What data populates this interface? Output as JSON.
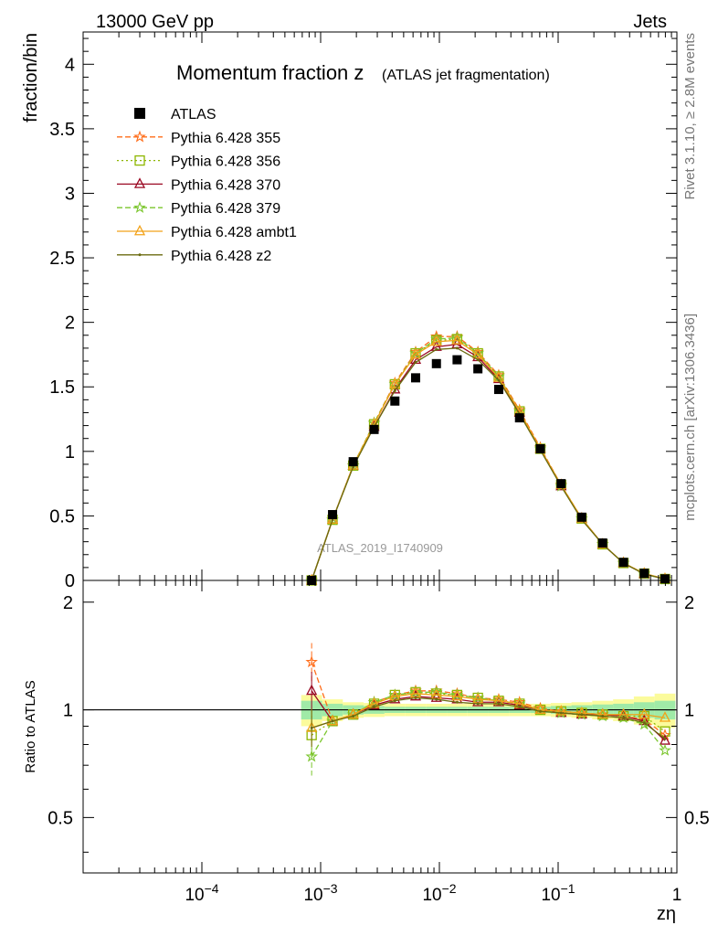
{
  "header": {
    "left": "13000 GeV pp",
    "right": "Jets"
  },
  "side_text": {
    "rivet": "Rivet 3.1.10, ≥ 2.8M events",
    "url": "mcplots.cern.ch [arXiv:1306.3436]"
  },
  "chart_data": {
    "type": "line",
    "title_main": "Momentum fraction z",
    "title_sub": "(ATLAS jet fragmentation)",
    "watermark": "ATLAS_2019_I1740909",
    "xlabel": "zη",
    "ylabel": "fraction/bin",
    "ratio_ylabel": "Ratio to ATLAS",
    "x_scale": "log",
    "xlim": [
      1e-05,
      1
    ],
    "ylim": [
      0,
      4.25
    ],
    "ratio_ylim": [
      0.35,
      2.3
    ],
    "x_ticks": [
      {
        "value": 0.0001,
        "base": "10",
        "exp": "−4"
      },
      {
        "value": 0.001,
        "base": "10",
        "exp": "−3"
      },
      {
        "value": 0.01,
        "base": "10",
        "exp": "−2"
      },
      {
        "value": 0.1,
        "base": "10",
        "exp": "−1"
      },
      {
        "value": 1,
        "base": "1",
        "exp": ""
      }
    ],
    "y_ticks": [
      {
        "value": 0,
        "label": "0"
      },
      {
        "value": 0.5,
        "label": "0.5"
      },
      {
        "value": 1,
        "label": "1"
      },
      {
        "value": 1.5,
        "label": "1.5"
      },
      {
        "value": 2,
        "label": "2"
      },
      {
        "value": 2.5,
        "label": "2.5"
      },
      {
        "value": 3,
        "label": "3"
      },
      {
        "value": 3.5,
        "label": "3.5"
      },
      {
        "value": 4,
        "label": "4"
      }
    ],
    "ratio_y_ticks": [
      {
        "value": 0.5,
        "label": "0.5"
      },
      {
        "value": 1,
        "label": "1"
      },
      {
        "value": 2,
        "label": "2"
      }
    ],
    "legend_position": "top-left",
    "x": [
      0.00084,
      0.00126,
      0.00188,
      0.00282,
      0.00422,
      0.00631,
      0.00944,
      0.0141,
      0.0211,
      0.0316,
      0.0473,
      0.0708,
      0.106,
      0.158,
      0.237,
      0.355,
      0.531,
      0.794
    ],
    "data": {
      "name": "ATLAS",
      "color": "#000000",
      "values": [
        0.0,
        0.51,
        0.92,
        1.17,
        1.39,
        1.57,
        1.68,
        1.71,
        1.64,
        1.48,
        1.26,
        1.02,
        0.75,
        0.49,
        0.29,
        0.14,
        0.055,
        0.012
      ],
      "band_rel_stat": [
        0.06,
        0.04,
        0.03,
        0.025,
        0.02,
        0.02,
        0.02,
        0.02,
        0.02,
        0.02,
        0.02,
        0.02,
        0.025,
        0.03,
        0.035,
        0.04,
        0.05,
        0.06
      ],
      "band_rel_total": [
        0.1,
        0.07,
        0.05,
        0.045,
        0.04,
        0.04,
        0.04,
        0.04,
        0.04,
        0.04,
        0.04,
        0.04,
        0.045,
        0.05,
        0.06,
        0.07,
        0.09,
        0.11
      ]
    },
    "series": [
      {
        "name": "Pythia 6.428 355",
        "color": "#ff6d1a",
        "dash": "dashed",
        "marker": "star",
        "values": [
          0.0,
          0.47,
          0.89,
          1.22,
          1.53,
          1.77,
          1.89,
          1.89,
          1.77,
          1.59,
          1.32,
          1.03,
          0.74,
          0.48,
          0.28,
          0.135,
          0.052,
          0.011
        ],
        "ratio": [
          1.36,
          0.93,
          0.97,
          1.05,
          1.1,
          1.13,
          1.13,
          1.11,
          1.08,
          1.07,
          1.05,
          1.01,
          0.99,
          0.98,
          0.97,
          0.96,
          0.94,
          0.85
        ]
      },
      {
        "name": "Pythia 6.428 356",
        "color": "#8db600",
        "dash": "dotted",
        "marker": "open-square",
        "values": [
          0.0,
          0.47,
          0.89,
          1.21,
          1.52,
          1.76,
          1.86,
          1.87,
          1.76,
          1.58,
          1.31,
          1.02,
          0.74,
          0.48,
          0.28,
          0.135,
          0.053,
          0.011
        ],
        "ratio": [
          0.85,
          0.93,
          0.97,
          1.04,
          1.1,
          1.12,
          1.11,
          1.1,
          1.08,
          1.06,
          1.04,
          1.0,
          0.99,
          0.98,
          0.97,
          0.96,
          0.96,
          0.87
        ]
      },
      {
        "name": "Pythia 6.428 370",
        "color": "#9b0a24",
        "dash": "solid",
        "marker": "open-triangle",
        "values": [
          0.0,
          0.47,
          0.89,
          1.19,
          1.48,
          1.71,
          1.81,
          1.83,
          1.73,
          1.56,
          1.3,
          1.02,
          0.73,
          0.48,
          0.28,
          0.135,
          0.05,
          0.01
        ],
        "ratio": [
          1.13,
          0.93,
          0.97,
          1.03,
          1.07,
          1.09,
          1.08,
          1.07,
          1.05,
          1.05,
          1.03,
          1.0,
          0.98,
          0.97,
          0.97,
          0.96,
          0.93,
          0.82
        ]
      },
      {
        "name": "Pythia 6.428 379",
        "color": "#7bc62d",
        "dash": "dashed",
        "marker": "star",
        "values": [
          0.0,
          0.47,
          0.89,
          1.22,
          1.52,
          1.76,
          1.87,
          1.88,
          1.76,
          1.58,
          1.31,
          1.02,
          0.73,
          0.48,
          0.28,
          0.135,
          0.05,
          0.009
        ],
        "ratio": [
          0.74,
          0.93,
          0.97,
          1.05,
          1.1,
          1.12,
          1.12,
          1.1,
          1.08,
          1.06,
          1.04,
          1.0,
          0.98,
          0.97,
          0.96,
          0.95,
          0.91,
          0.77
        ]
      },
      {
        "name": "Pythia 6.428 ambt1",
        "color": "#f2a219",
        "dash": "solid",
        "marker": "open-triangle",
        "values": [
          0.0,
          0.47,
          0.89,
          1.21,
          1.52,
          1.75,
          1.85,
          1.86,
          1.75,
          1.57,
          1.31,
          1.02,
          0.74,
          0.48,
          0.28,
          0.135,
          0.054,
          0.012
        ],
        "ratio": [
          0.89,
          0.93,
          0.97,
          1.04,
          1.09,
          1.11,
          1.1,
          1.09,
          1.07,
          1.06,
          1.04,
          1.0,
          0.99,
          0.98,
          0.97,
          0.97,
          0.97,
          0.95
        ]
      },
      {
        "name": "Pythia 6.428 z2",
        "color": "#6b6b10",
        "dash": "solid",
        "marker": "dot",
        "values": [
          0.0,
          0.47,
          0.88,
          1.19,
          1.47,
          1.69,
          1.79,
          1.8,
          1.71,
          1.55,
          1.29,
          1.01,
          0.73,
          0.47,
          0.28,
          0.133,
          0.05,
          0.01
        ],
        "ratio": [
          0.89,
          0.93,
          0.96,
          1.02,
          1.06,
          1.08,
          1.07,
          1.05,
          1.04,
          1.04,
          1.02,
          0.99,
          0.98,
          0.97,
          0.96,
          0.95,
          0.92,
          0.83
        ]
      }
    ]
  }
}
